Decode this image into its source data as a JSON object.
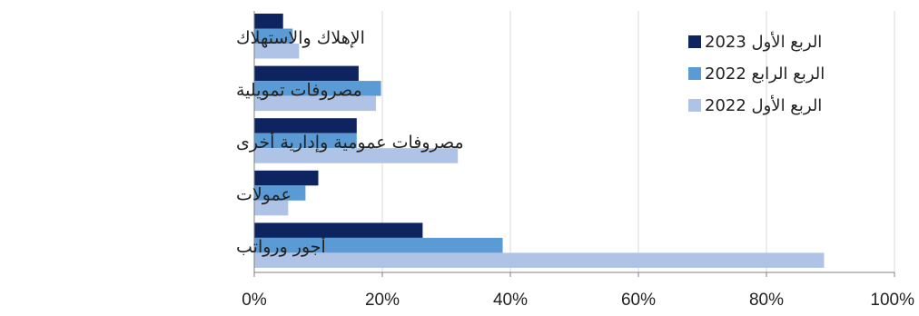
{
  "chart_data": {
    "type": "bar",
    "orientation": "horizontal",
    "categories": [
      "الإهلاك والاستهلاك",
      "مصروفات تمويلية",
      "مصروفات عمومية وإدارية أخرى",
      "عمولات",
      "أجور ورواتب"
    ],
    "series": [
      {
        "name": "الربع الأول 2023",
        "color": "#0d2461",
        "values": [
          4.5,
          16.3,
          16.0,
          10.0,
          26.3
        ]
      },
      {
        "name": "الربع الرابع 2022",
        "color": "#5b9bd5",
        "values": [
          6.0,
          19.8,
          16.0,
          8.0,
          38.8
        ]
      },
      {
        "name": "الربع الأول 2022",
        "color": "#aec3e6",
        "values": [
          7.0,
          19.0,
          31.8,
          5.3,
          89.0
        ]
      }
    ],
    "xlim": [
      0,
      100
    ],
    "xticks": [
      "0%",
      "20%",
      "40%",
      "60%",
      "80%",
      "100%"
    ],
    "grid": true,
    "legend_position": "top-right"
  }
}
